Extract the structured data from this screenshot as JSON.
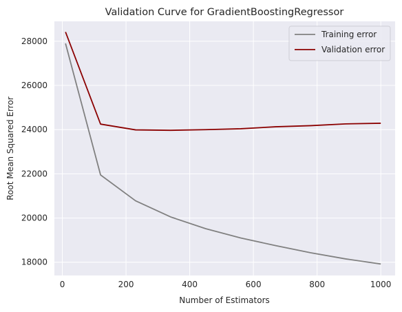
{
  "chart_data": {
    "type": "line",
    "title": "Validation Curve for GradientBoostingRegressor",
    "xlabel": "Number of Estimators",
    "ylabel": "Root Mean Squared Error",
    "xlim": [
      -25,
      1045
    ],
    "ylim": [
      17400,
      28900
    ],
    "x_ticks": [
      0,
      200,
      400,
      600,
      800,
      1000
    ],
    "y_ticks": [
      18000,
      20000,
      22000,
      24000,
      26000,
      28000
    ],
    "grid": true,
    "legend_position": "top-right",
    "x": [
      10,
      120,
      230,
      340,
      450,
      560,
      670,
      780,
      890,
      1000
    ],
    "series": [
      {
        "name": "Training error",
        "color": "#808080",
        "values": [
          27900,
          21950,
          20780,
          20050,
          19520,
          19100,
          18750,
          18430,
          18150,
          17920
        ]
      },
      {
        "name": "Validation error",
        "color": "#8b0000",
        "values": [
          28420,
          24250,
          23990,
          23970,
          24000,
          24040,
          24130,
          24180,
          24260,
          24290
        ]
      }
    ]
  }
}
